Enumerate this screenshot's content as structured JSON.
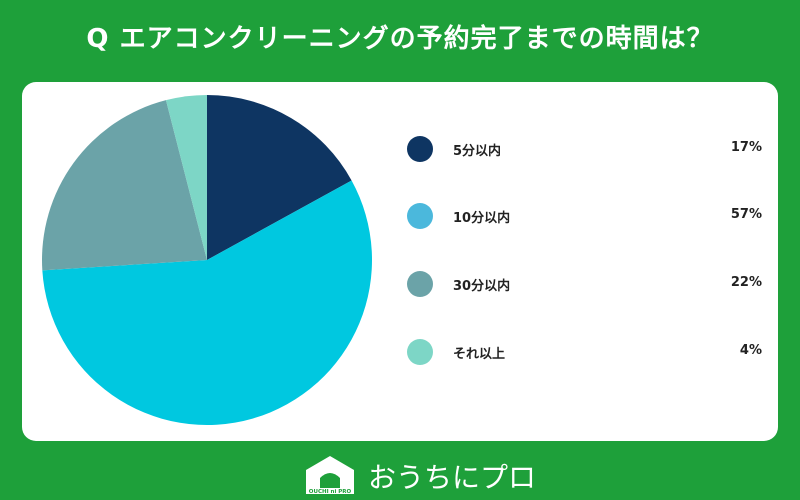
{
  "header": {
    "title": "Q エアコンクリーニングの予約完了までの時間は？"
  },
  "chart_data": {
    "type": "pie",
    "categories": [
      "5分以内",
      "10分以内",
      "30分以内",
      "それ以上"
    ],
    "values": [
      17,
      57,
      22,
      4
    ],
    "value_labels": [
      "17%",
      "57%",
      "22%",
      "4%"
    ],
    "colors": [
      "#0e3562",
      "#00c8e0",
      "#6ba3a8",
      "#7dd6c6"
    ],
    "legend_colors": [
      "#0e3562",
      "#4bb8dc",
      "#6ba3a8",
      "#7dd6c6"
    ],
    "legend_position": "right"
  },
  "logo": {
    "text": "おうちにプロ",
    "mark_text": "OUCHI ni PRO"
  }
}
